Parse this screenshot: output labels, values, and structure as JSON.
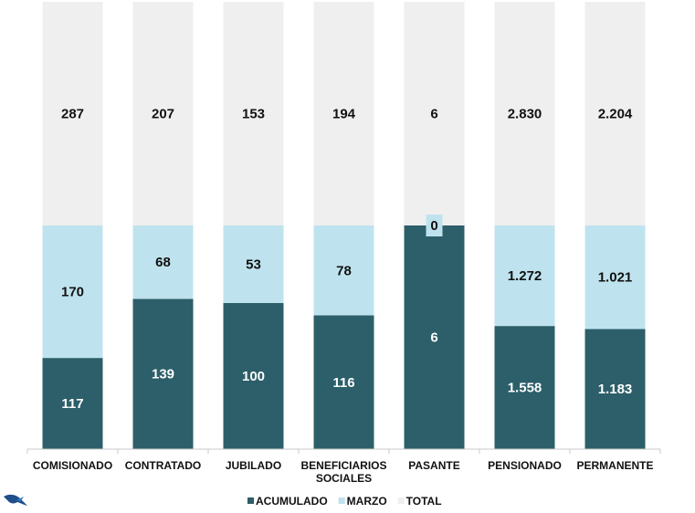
{
  "chart_data": {
    "type": "bar",
    "stacked": true,
    "normalized": true,
    "categories": [
      "COMISIONADO",
      "CONTRATADO",
      "JUBILADO",
      "BENEFICIARIOS SOCIALES",
      "PASANTE",
      "PENSIONADO",
      "PERMANENTE"
    ],
    "category_lines": [
      [
        "COMISIONADO"
      ],
      [
        "CONTRATADO"
      ],
      [
        "JUBILADO"
      ],
      [
        "BENEFICIARIOS",
        "SOCIALES"
      ],
      [
        "PASANTE"
      ],
      [
        "PENSIONADO"
      ],
      [
        "PERMANENTE"
      ]
    ],
    "series": [
      {
        "name": "ACUMULADO",
        "color": "#2c5f6a",
        "label_color": "#ffffff",
        "values": [
          117,
          139,
          100,
          116,
          6,
          1558,
          1183
        ],
        "labels": [
          "117",
          "139",
          "100",
          "116",
          "6",
          "1.558",
          "1.183"
        ]
      },
      {
        "name": "MARZO",
        "color": "#bfe3ee",
        "label_color": "#111111",
        "values": [
          170,
          68,
          53,
          78,
          0,
          1272,
          1021
        ],
        "labels": [
          "170",
          "68",
          "53",
          "78",
          "0",
          "1.272",
          "1.021"
        ]
      },
      {
        "name": "TOTAL",
        "color": "#efefef",
        "label_color": "#111111",
        "values": [
          287,
          207,
          153,
          194,
          6,
          2830,
          2204
        ],
        "labels": [
          "287",
          "207",
          "153",
          "194",
          "6",
          "2.830",
          "2.204"
        ]
      }
    ],
    "legend_position": "bottom",
    "grid": false
  },
  "icons": {
    "corner_logo": "bird-logo-icon"
  }
}
